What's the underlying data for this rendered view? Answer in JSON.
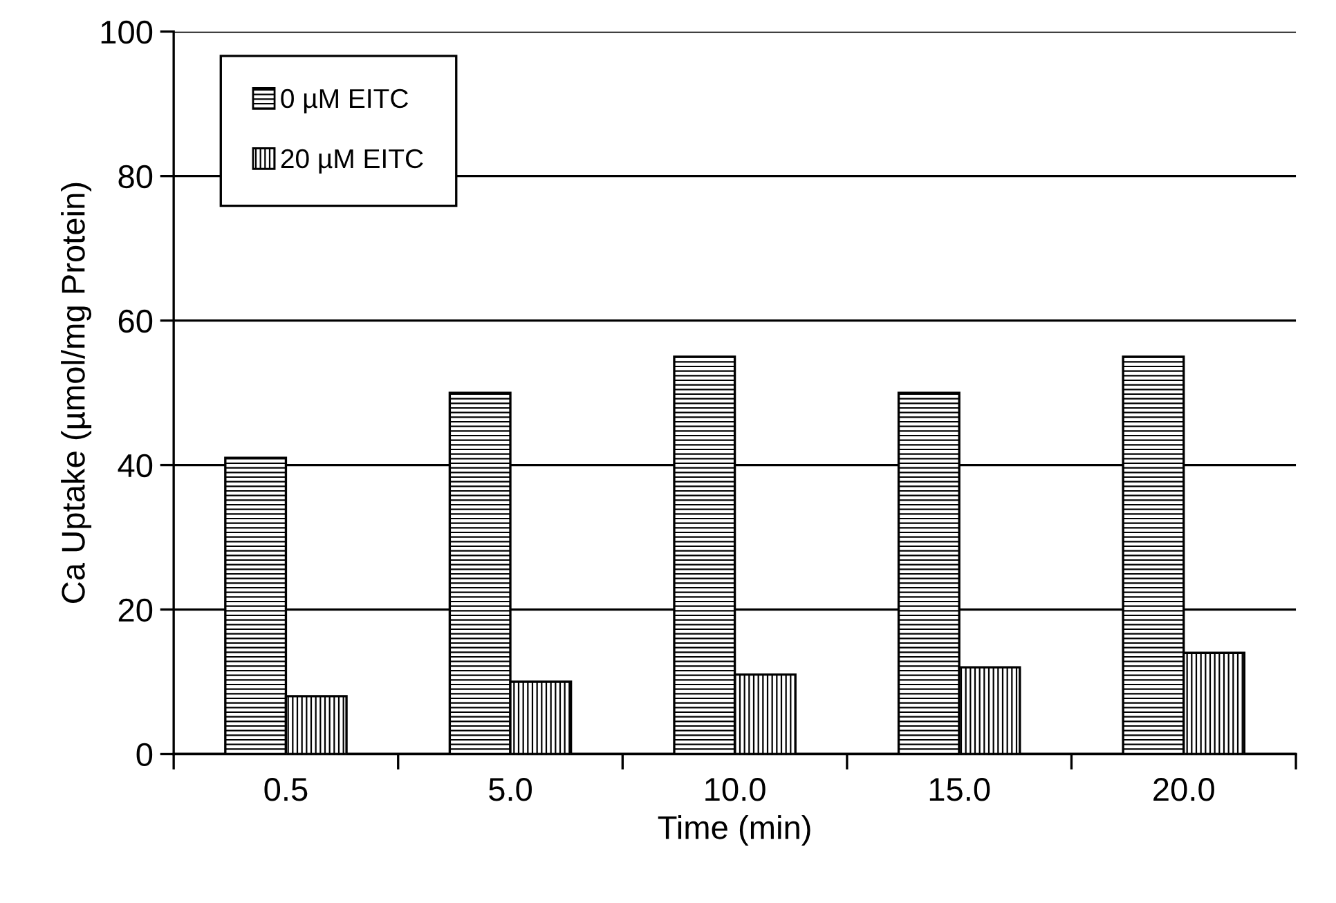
{
  "chart_data": {
    "type": "bar",
    "xlabel": "Time (min)",
    "ylabel": "Ca Uptake (µmol/mg Protein)",
    "categories": [
      "0.5",
      "5.0",
      "10.0",
      "15.0",
      "20.0"
    ],
    "series": [
      {
        "name": "0 µM EITC",
        "color": "#000000",
        "values": [
          41,
          50,
          55,
          50,
          55
        ]
      },
      {
        "name": "20 µM EITC",
        "color": "#000000",
        "values": [
          8,
          10,
          11,
          12,
          14
        ]
      }
    ],
    "ylim": [
      0,
      100
    ],
    "yticks": [
      0,
      20,
      40,
      60,
      80,
      100
    ],
    "grid": "y",
    "legend": "top left"
  }
}
